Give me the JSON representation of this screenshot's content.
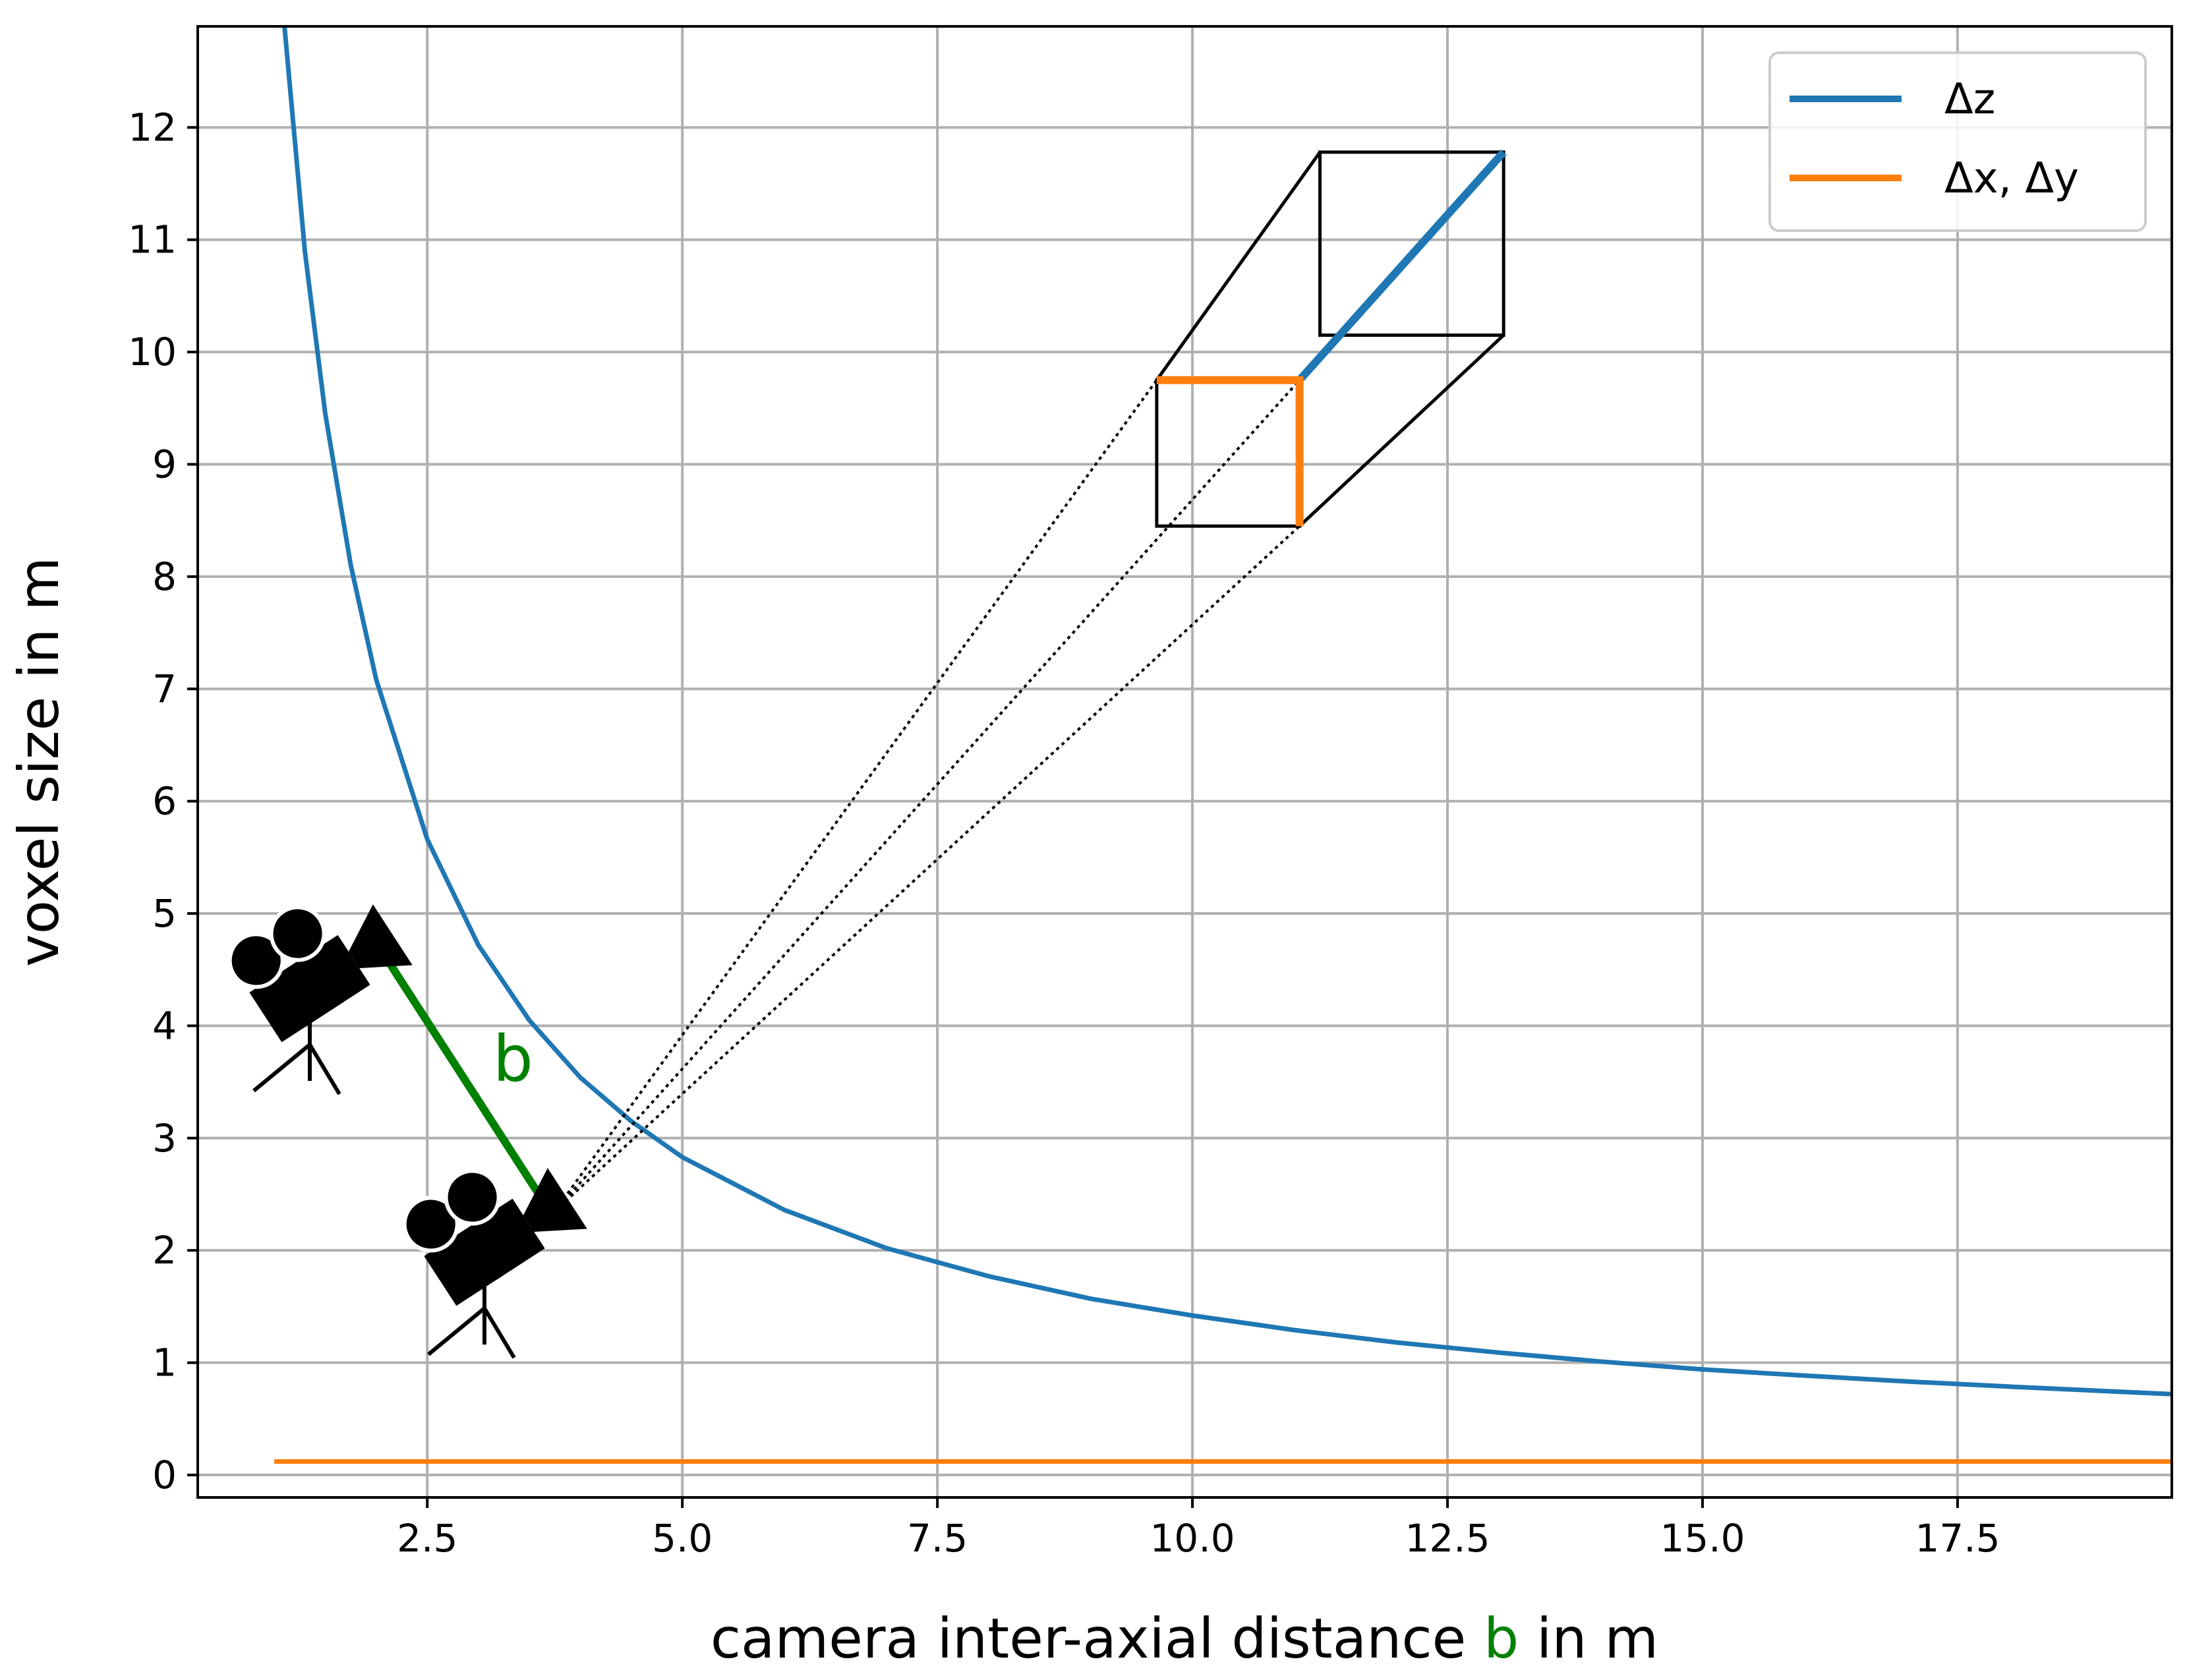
{
  "chart_data": {
    "type": "line",
    "title": "",
    "xlabel_parts": [
      "camera inter-axial distance ",
      "b",
      " in m"
    ],
    "ylabel": "voxel size in m",
    "xlim": [
      0.25,
      19.6
    ],
    "ylim": [
      -0.2,
      12.9
    ],
    "x_ticks": [
      2.5,
      5.0,
      7.5,
      10.0,
      12.5,
      15.0,
      17.5
    ],
    "x_tick_labels": [
      "2.5",
      "5.0",
      "7.5",
      "10.0",
      "12.5",
      "15.0",
      "17.5"
    ],
    "y_ticks": [
      0,
      1,
      2,
      3,
      4,
      5,
      6,
      7,
      8,
      9,
      10,
      11,
      12
    ],
    "y_tick_labels": [
      "0",
      "1",
      "2",
      "3",
      "4",
      "5",
      "6",
      "7",
      "8",
      "9",
      "10",
      "11",
      "12"
    ],
    "grid": true,
    "legend_position": "top-right",
    "series": [
      {
        "name": "Δz",
        "color": "#1f77b4",
        "x": [
          1.1,
          1.3,
          1.5,
          1.75,
          2.0,
          2.5,
          3.0,
          3.5,
          4.0,
          4.5,
          5.0,
          6.0,
          7.0,
          8.0,
          9.0,
          10.0,
          11.0,
          12.0,
          13.0,
          14.0,
          15.0,
          16.0,
          17.0,
          18.0,
          19.0,
          19.6
        ],
        "y": [
          12.9,
          10.9,
          9.45,
          8.1,
          7.08,
          5.66,
          4.72,
          4.05,
          3.54,
          3.15,
          2.83,
          2.36,
          2.02,
          1.77,
          1.57,
          1.42,
          1.29,
          1.18,
          1.09,
          1.01,
          0.94,
          0.885,
          0.833,
          0.787,
          0.745,
          0.72
        ]
      },
      {
        "name": "Δx, Δy",
        "color": "#ff7f0e",
        "x": [
          1.0,
          19.6
        ],
        "y": [
          0.12,
          0.12
        ]
      }
    ],
    "annotations": {
      "baseline_label": "b",
      "baseline_color": "#008000"
    }
  }
}
